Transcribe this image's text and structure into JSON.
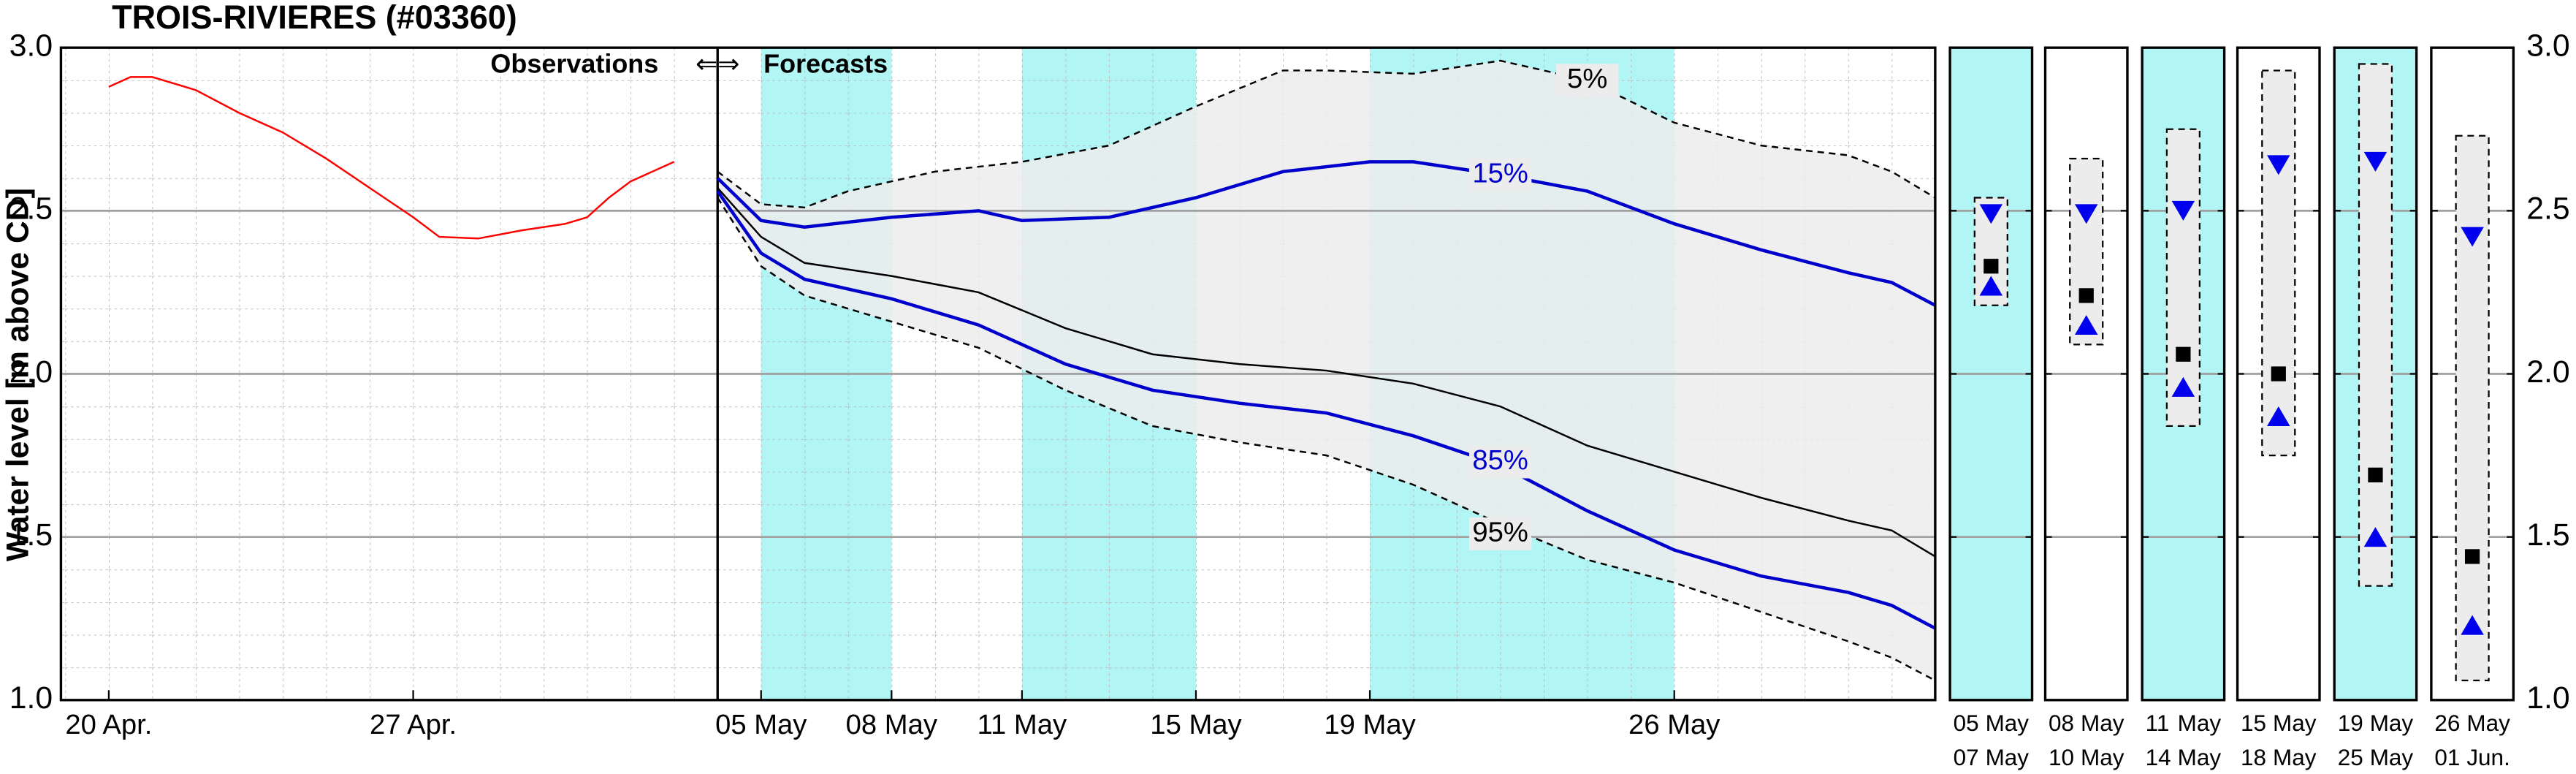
{
  "chart_data": [
    {
      "type": "line",
      "title": "TROIS-RIVIERES (#03360)",
      "ylabel": "Water level [m above CD]",
      "annotations": [
        "Observations",
        "⇐⇒",
        "Forecasts"
      ],
      "xlim": [
        -1.1,
        42
      ],
      "ylim": [
        1,
        3
      ],
      "xticks": [
        {
          "value": 0,
          "label": "20 Apr."
        },
        {
          "value": 7,
          "label": "27 Apr."
        },
        {
          "value": 15,
          "label": "05 May"
        },
        {
          "value": 18,
          "label": "08 May"
        },
        {
          "value": 21,
          "label": "11 May"
        },
        {
          "value": 25,
          "label": "15 May"
        },
        {
          "value": 29,
          "label": "19 May"
        },
        {
          "value": 36,
          "label": "26 May"
        }
      ],
      "yticks": [
        {
          "value": 1,
          "label": "1.0"
        },
        1.5,
        {
          "value": 2,
          "label": "2.0"
        },
        2.5,
        {
          "value": 3,
          "label": "3.0"
        }
      ],
      "forecast_start": 14,
      "shaded_ranges": [
        [
          15,
          18
        ],
        [
          21,
          25
        ],
        [
          29,
          36
        ]
      ],
      "shade_color": "#b2f5f5",
      "band_color": "#ececec",
      "grid": true,
      "series": [
        {
          "color": "#ff0000",
          "x": [
            0,
            0.5,
            1,
            2,
            3,
            4,
            5,
            6,
            7,
            7.6,
            8.5,
            9.5,
            10.5,
            11,
            11.5,
            12,
            13
          ],
          "values": [
            2.88,
            2.91,
            2.91,
            2.87,
            2.8,
            2.74,
            2.66,
            2.57,
            2.48,
            2.42,
            2.415,
            2.44,
            2.46,
            2.48,
            2.54,
            2.59,
            2.65
          ]
        },
        {
          "name": "5%",
          "color": "#000000",
          "dash": true,
          "x": [
            14,
            15,
            16,
            17,
            19,
            21,
            23,
            25,
            27,
            28,
            30,
            32,
            34,
            36,
            38,
            40,
            41,
            42
          ],
          "values": [
            2.62,
            2.52,
            2.51,
            2.56,
            2.62,
            2.65,
            2.7,
            2.82,
            2.93,
            2.93,
            2.92,
            2.96,
            2.9,
            2.77,
            2.7,
            2.67,
            2.62,
            2.54
          ]
        },
        {
          "name": "15%",
          "color": "#0000cc",
          "x": [
            14,
            15,
            16,
            18,
            20,
            21,
            23,
            25,
            27,
            29,
            30,
            32,
            34,
            36,
            38,
            40,
            41,
            42
          ],
          "values": [
            2.6,
            2.47,
            2.45,
            2.48,
            2.5,
            2.47,
            2.48,
            2.54,
            2.62,
            2.65,
            2.65,
            2.61,
            2.56,
            2.46,
            2.38,
            2.31,
            2.28,
            2.21
          ]
        },
        {
          "color": "#000000",
          "thin": true,
          "x": [
            14,
            15,
            16,
            18,
            20,
            22,
            24,
            26,
            28,
            30,
            32,
            34,
            36,
            38,
            40,
            41,
            42
          ],
          "values": [
            2.57,
            2.42,
            2.34,
            2.3,
            2.25,
            2.14,
            2.06,
            2.03,
            2.01,
            1.97,
            1.9,
            1.78,
            1.7,
            1.62,
            1.55,
            1.52,
            1.44
          ]
        },
        {
          "name": "85%",
          "color": "#0000cc",
          "x": [
            14,
            15,
            16,
            18,
            20,
            22,
            24,
            26,
            28,
            30,
            32,
            34,
            36,
            38,
            40,
            41,
            42
          ],
          "values": [
            2.56,
            2.37,
            2.29,
            2.23,
            2.15,
            2.03,
            1.95,
            1.91,
            1.88,
            1.81,
            1.72,
            1.58,
            1.46,
            1.38,
            1.33,
            1.29,
            1.22
          ]
        },
        {
          "name": "95%",
          "color": "#000000",
          "dash": true,
          "x": [
            14,
            15,
            16,
            18,
            20,
            22,
            24,
            26,
            28,
            30,
            32,
            34,
            36,
            38,
            40,
            41,
            42
          ],
          "values": [
            2.54,
            2.33,
            2.24,
            2.16,
            2.08,
            1.95,
            1.84,
            1.79,
            1.75,
            1.66,
            1.54,
            1.43,
            1.36,
            1.27,
            1.18,
            1.13,
            1.06
          ]
        }
      ]
    },
    {
      "type": "range",
      "ylim": [
        1,
        3
      ],
      "yticks": [
        {
          "value": 1,
          "label": "1.0"
        },
        1.5,
        {
          "value": 2,
          "label": "2.0"
        },
        2.5,
        {
          "value": 3,
          "label": "3.0"
        }
      ],
      "start_labels": [
        "05",
        "08",
        "11",
        "15",
        "19",
        "26"
      ],
      "start_months": [
        "May",
        "May",
        "May",
        "May",
        "May",
        "May"
      ],
      "end_labels": [
        "07",
        "10",
        "14",
        "18",
        "25",
        "01"
      ],
      "end_months": [
        "May",
        "May",
        "May",
        "May",
        "May",
        "Jun."
      ],
      "highlight": [
        true,
        false,
        true,
        false,
        true,
        false
      ],
      "max": [
        2.54,
        2.66,
        2.75,
        2.93,
        2.95,
        2.73
      ],
      "min": [
        2.21,
        2.09,
        1.84,
        1.75,
        1.35,
        1.06
      ],
      "p15": [
        2.49,
        2.49,
        2.5,
        2.64,
        2.65,
        2.42
      ],
      "median": [
        2.33,
        2.24,
        2.06,
        2.0,
        1.69,
        1.44
      ],
      "p85": [
        2.27,
        2.15,
        1.96,
        1.87,
        1.5,
        1.23
      ],
      "marker_color": "#0000ee"
    }
  ]
}
